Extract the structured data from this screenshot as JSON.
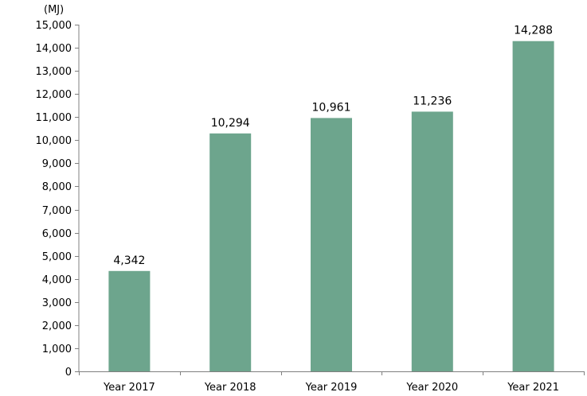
{
  "chart_data": {
    "type": "bar",
    "unit_label": "(MJ)",
    "categories": [
      "Year 2017",
      "Year 2018",
      "Year 2019",
      "Year 2020",
      "Year 2021"
    ],
    "values": [
      4342,
      10294,
      10961,
      11236,
      14288
    ],
    "data_labels": [
      "4,342",
      "10,294",
      "10,961",
      "11,236",
      "14,288"
    ],
    "ylim": [
      0,
      15000
    ],
    "y_ticks": [
      0,
      1000,
      2000,
      3000,
      4000,
      5000,
      6000,
      7000,
      8000,
      9000,
      10000,
      11000,
      12000,
      13000,
      14000,
      15000
    ],
    "y_tick_labels": [
      "0",
      "1,000",
      "2,000",
      "3,000",
      "4,000",
      "5,000",
      "6,000",
      "7,000",
      "8,000",
      "9,000",
      "10,000",
      "11,000",
      "12,000",
      "13,000",
      "14,000",
      "15,000"
    ],
    "grid": false,
    "legend": "none",
    "bar_color": "#6da58d",
    "axis_color": "#808080"
  }
}
